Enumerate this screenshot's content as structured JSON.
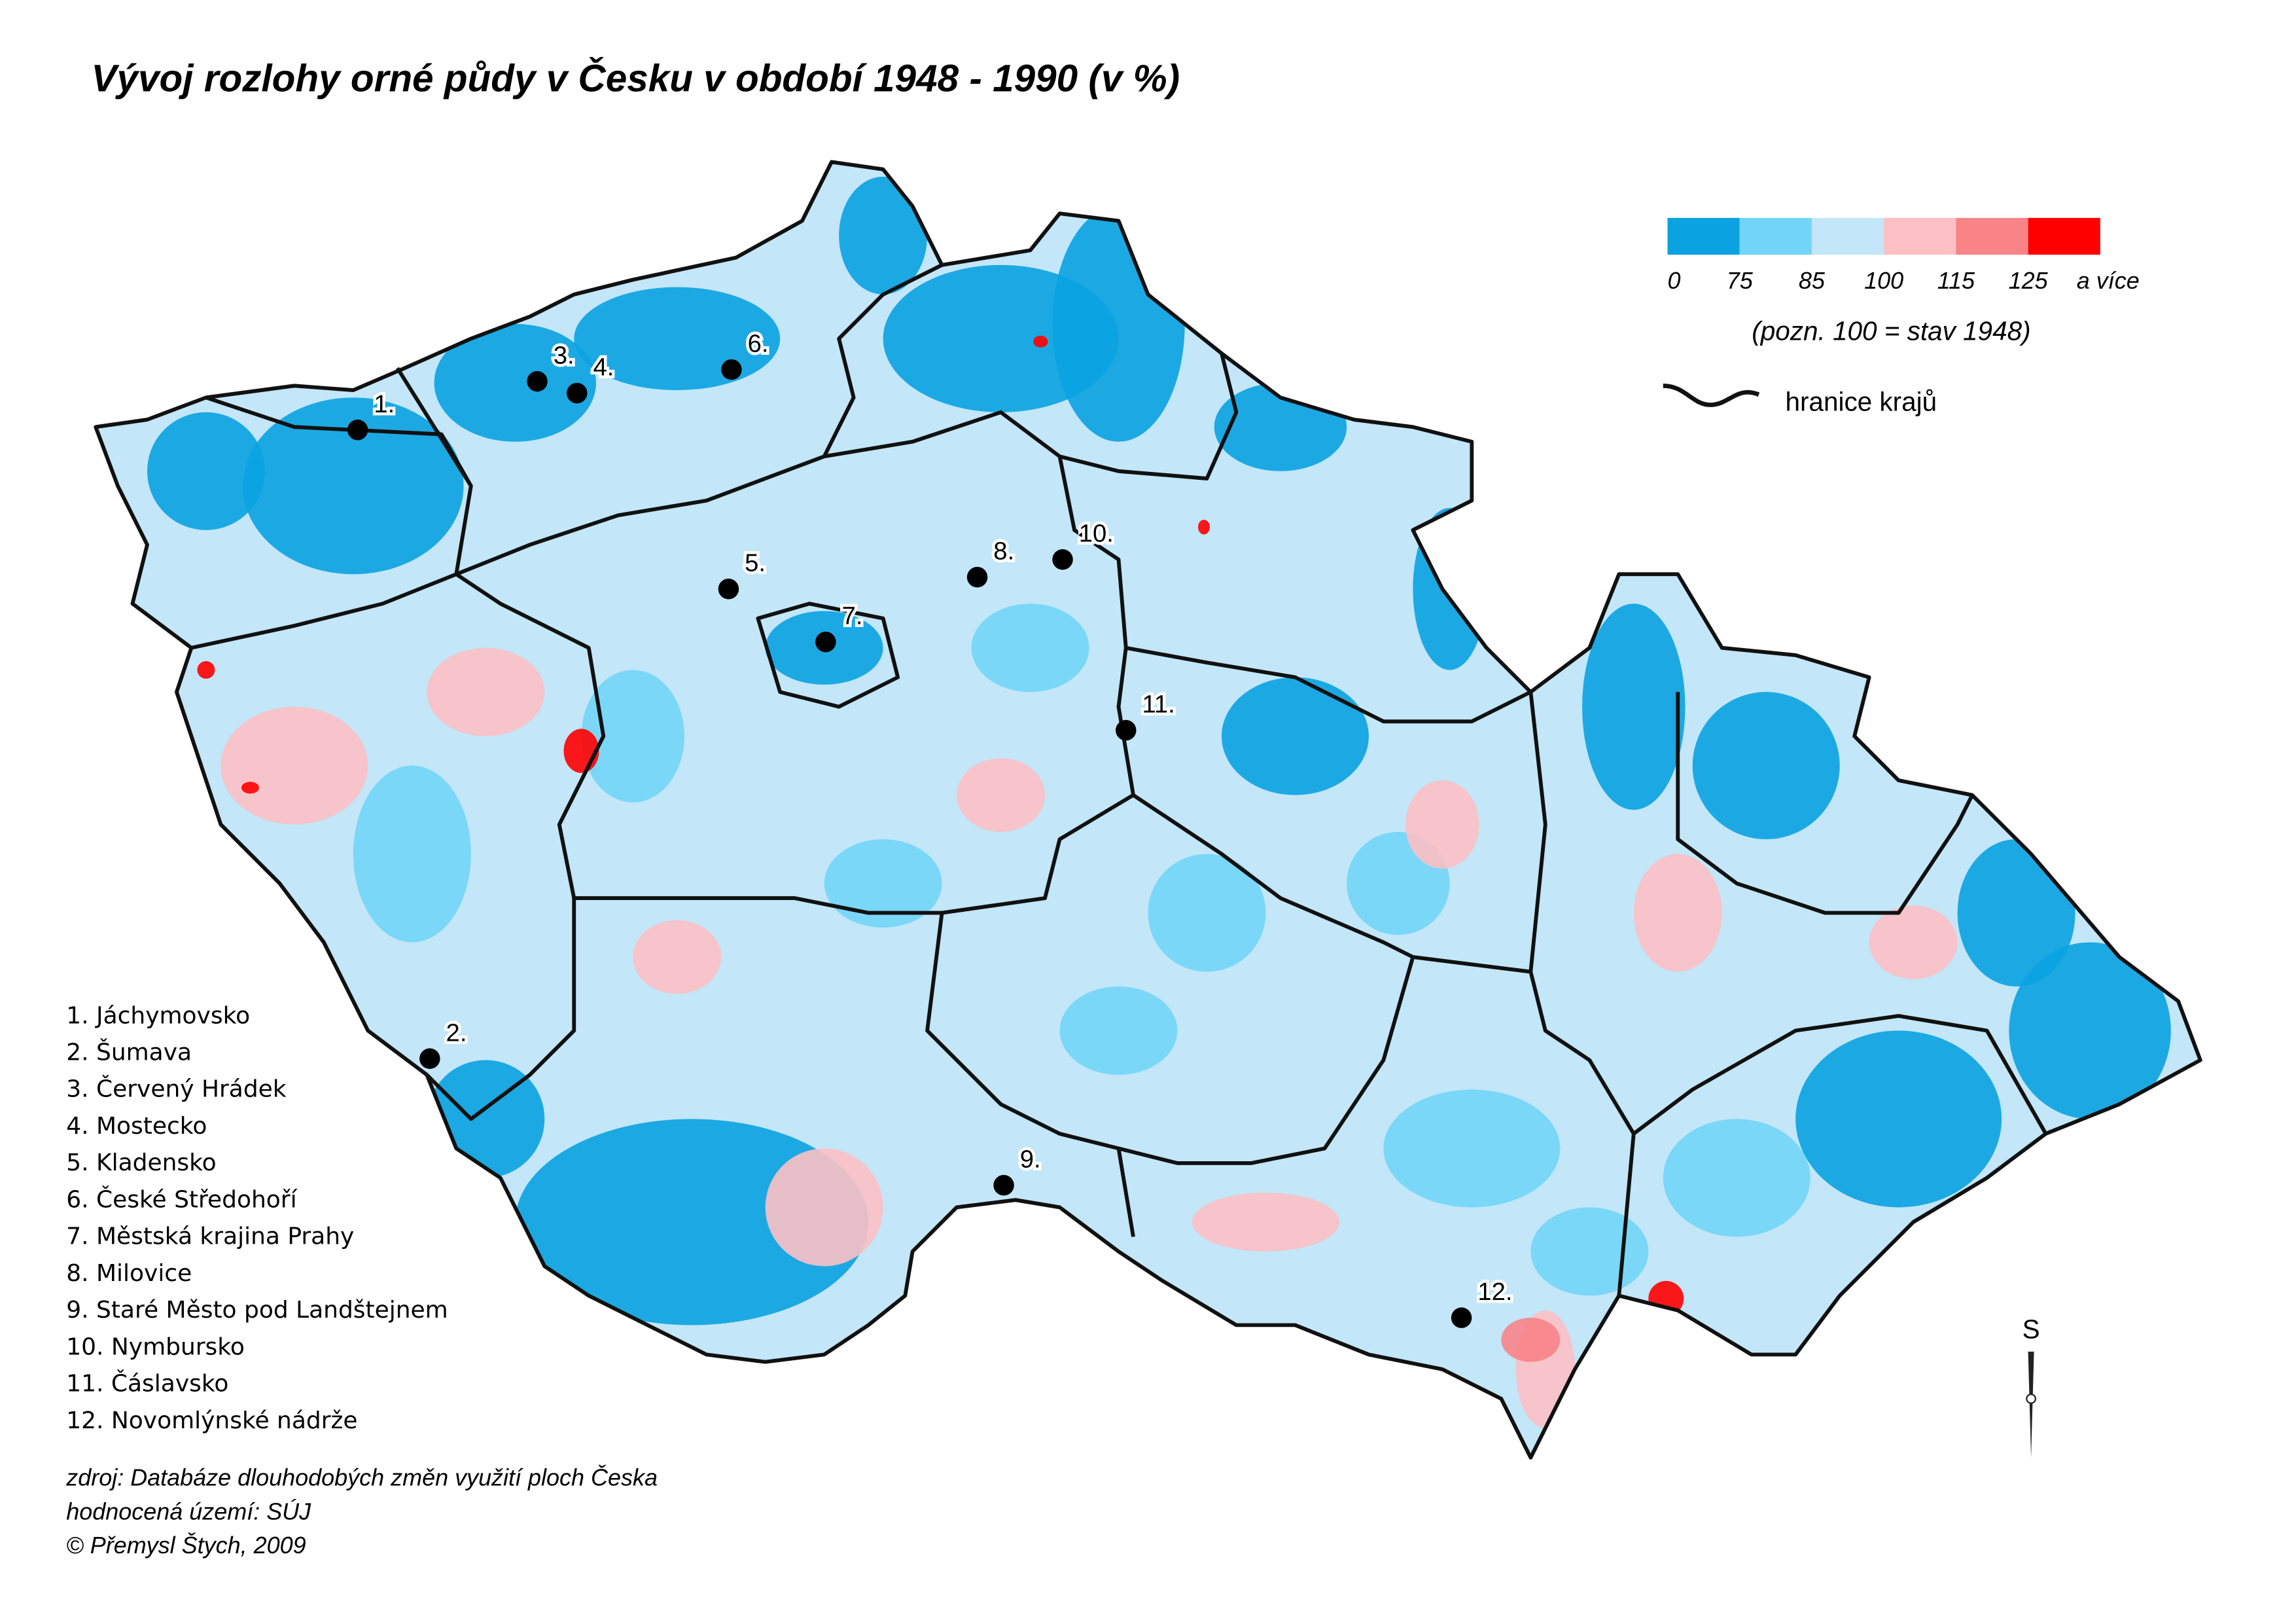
{
  "title": "Vývoj rozlohy orné půdy v Česku v období 1948 - 1990 (v %)",
  "legend": {
    "colors": [
      "#0aa2e0",
      "#72d5f7",
      "#c3e6f8",
      "#fcc0c4",
      "#f88488",
      "#ff0000"
    ],
    "breaks": [
      0,
      75,
      85,
      100,
      115,
      125
    ],
    "last_label": "a více",
    "note": "(pozn. 100 = stav 1948)",
    "border_label": "hranice krajů"
  },
  "places": [
    {
      "marker": "1.",
      "name": "1. Jáchymovsko"
    },
    {
      "marker": "2.",
      "name": "2. Šumava"
    },
    {
      "marker": "3.",
      "name": "3. Červený Hrádek"
    },
    {
      "marker": "4.",
      "name": "4. Mostecko"
    },
    {
      "marker": "5.",
      "name": "5. Kladensko"
    },
    {
      "marker": "6.",
      "name": "6. České Středohoří"
    },
    {
      "marker": "7.",
      "name": "7. Městská krajina Prahy"
    },
    {
      "marker": "8.",
      "name": "8. Milovice"
    },
    {
      "marker": "9.",
      "name": "9. Staré Město pod Landštejnem"
    },
    {
      "marker": "10.",
      "name": "10. Nymbursko"
    },
    {
      "marker": "11.",
      "name": "11. Čáslavsko"
    },
    {
      "marker": "12.",
      "name": "12. Novomlýnské nádrže"
    }
  ],
  "source": [
    "zdroj: Databáze dlouhodobých změn využití ploch Česka",
    "hodnocená území: SÚJ",
    "© Přemysl Štych, 2009"
  ],
  "north": "S"
}
